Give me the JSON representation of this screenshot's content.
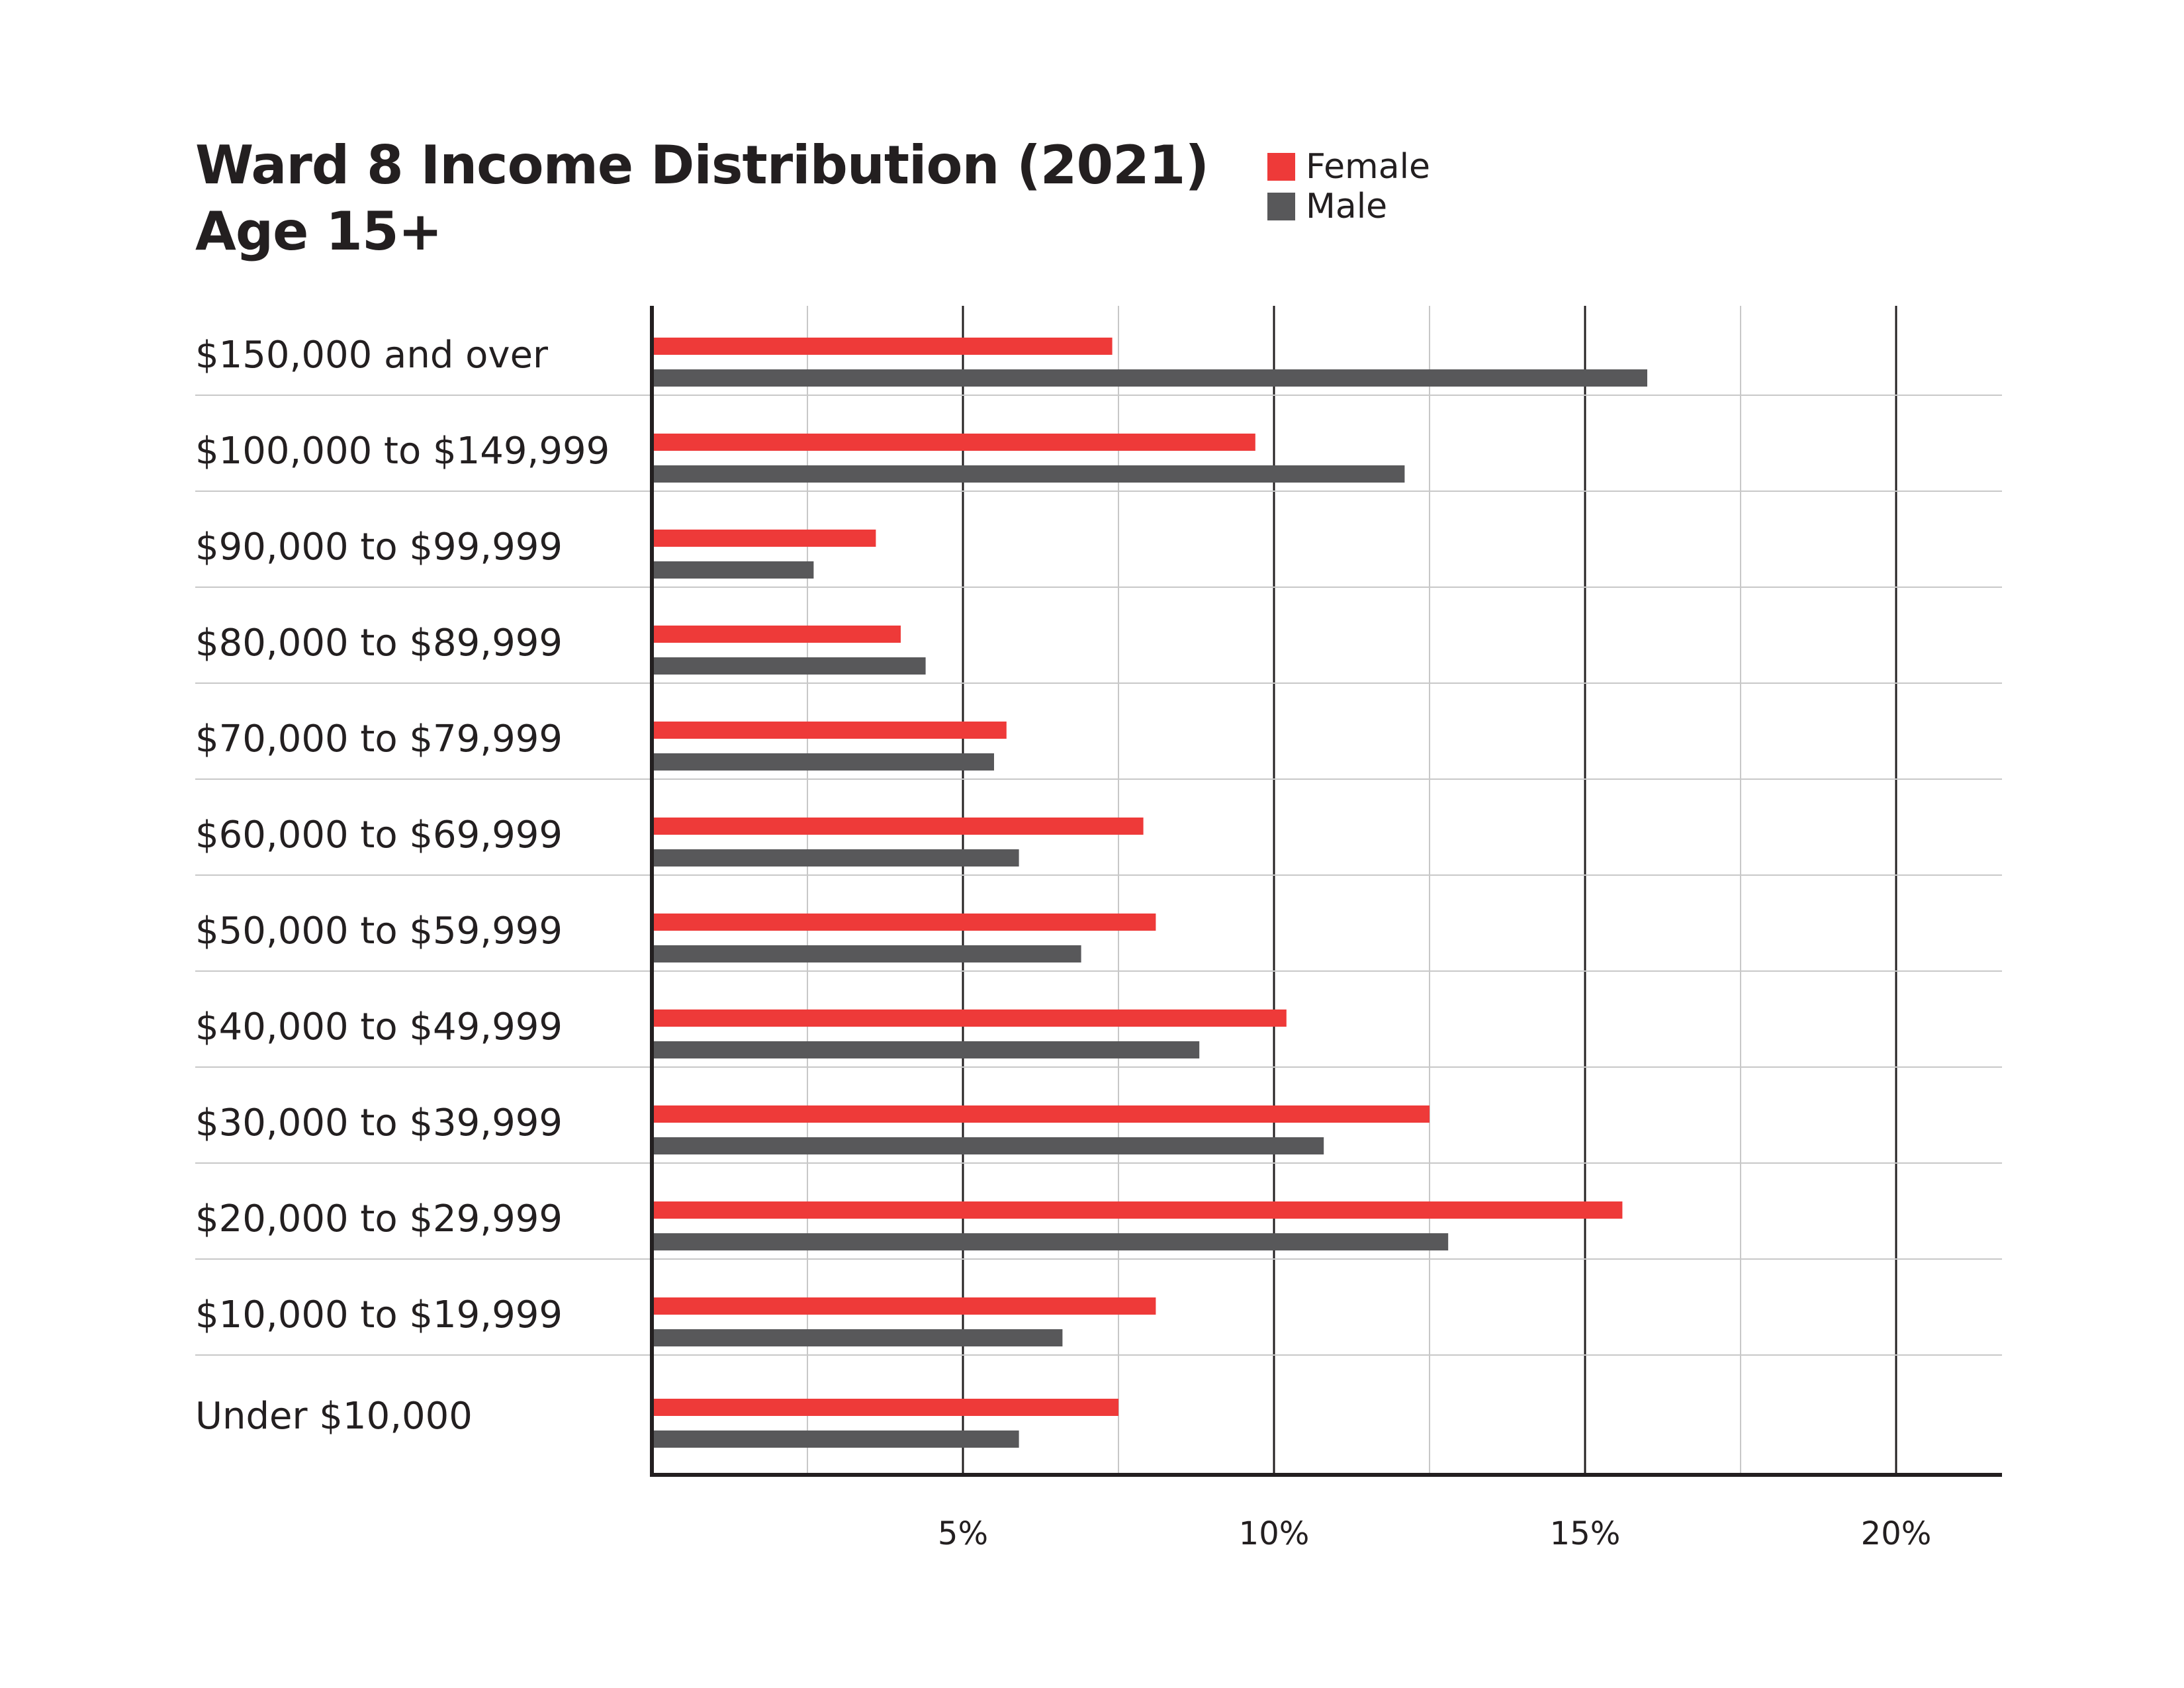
{
  "chart_data": {
    "type": "bar",
    "orientation": "horizontal",
    "title": "Ward 8 Income Distribution (2021)",
    "subtitle": "Age 15+",
    "xlabel": "",
    "ylabel": "",
    "xlim": [
      0,
      21.7
    ],
    "x_ticks": [
      {
        "value": 5,
        "label": "5%"
      },
      {
        "value": 10,
        "label": "10%"
      },
      {
        "value": 15,
        "label": "15%"
      },
      {
        "value": 20,
        "label": "20%"
      }
    ],
    "minor_gridlines": [
      2.5,
      7.5,
      12.5,
      17.5
    ],
    "grid": true,
    "legend_position": "top-right",
    "categories": [
      "$150,000 and over",
      "$100,000 to $149,999",
      "$90,000 to $99,999",
      "$80,000 to $89,999",
      "$70,000 to $79,999",
      "$60,000 to $69,999",
      "$50,000 to $59,999",
      "$40,000 to $49,999",
      "$30,000 to $39,999",
      "$20,000 to $29,999",
      "$10,000 to $19,999",
      "Under $10,000"
    ],
    "series": [
      {
        "name": "Female",
        "color": "#ee3a39",
        "values": [
          7.4,
          9.7,
          3.6,
          4.0,
          5.7,
          7.9,
          8.1,
          10.2,
          12.5,
          15.6,
          8.1,
          7.5
        ]
      },
      {
        "name": "Male",
        "color": "#58585a",
        "values": [
          16.0,
          12.1,
          2.6,
          4.4,
          5.5,
          5.9,
          6.9,
          8.8,
          10.8,
          12.8,
          6.6,
          5.9
        ]
      }
    ]
  },
  "colors": {
    "female": "#ee3a39",
    "male": "#58585a",
    "axis": "#231f20",
    "major_grid": "#231f20",
    "minor_grid": "#c8c8c8"
  }
}
